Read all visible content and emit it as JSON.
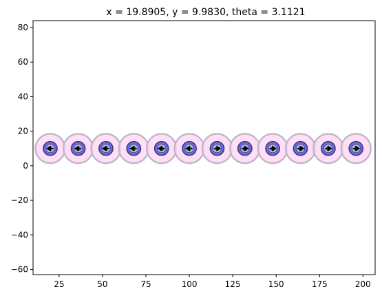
{
  "chart_data": {
    "type": "scatter",
    "title": "x = 19.8905, y = 9.9830, theta = 3.1121",
    "xlabel": "",
    "ylabel": "",
    "xlim": [
      10,
      207
    ],
    "ylim": [
      -63,
      84
    ],
    "xticks": [
      25,
      50,
      75,
      100,
      125,
      150,
      175,
      200
    ],
    "yticks": [
      -60,
      -40,
      -20,
      0,
      20,
      40,
      60,
      80
    ],
    "grid": false,
    "agent_radius": 4,
    "safety_radius": 8.5,
    "agents": [
      {
        "x": 19.9,
        "y": 10.0,
        "heading": "left"
      },
      {
        "x": 36.0,
        "y": 10.0,
        "heading": "left"
      },
      {
        "x": 52.0,
        "y": 10.0,
        "heading": "left"
      },
      {
        "x": 68.0,
        "y": 10.0,
        "heading": "left"
      },
      {
        "x": 84.0,
        "y": 10.0,
        "heading": "left"
      },
      {
        "x": 100.0,
        "y": 10.0,
        "heading": "left"
      },
      {
        "x": 116.0,
        "y": 10.0,
        "heading": "right"
      },
      {
        "x": 132.0,
        "y": 10.0,
        "heading": "right"
      },
      {
        "x": 148.0,
        "y": 10.0,
        "heading": "right"
      },
      {
        "x": 164.0,
        "y": 10.0,
        "heading": "right"
      },
      {
        "x": 180.0,
        "y": 10.0,
        "heading": "right"
      },
      {
        "x": 196.0,
        "y": 10.0,
        "heading": "right"
      }
    ],
    "colors": {
      "safety_fill": "#ffd9f6",
      "safety_edge": "#c0b6c8",
      "agent_fill": "#6b6bea",
      "agent_edge": "#3d3d6e",
      "inner_fill": "#c8b8ee",
      "arrow": "#000000",
      "sensor_green": "#1a9e1a",
      "sensor_red": "#e0152b"
    }
  }
}
